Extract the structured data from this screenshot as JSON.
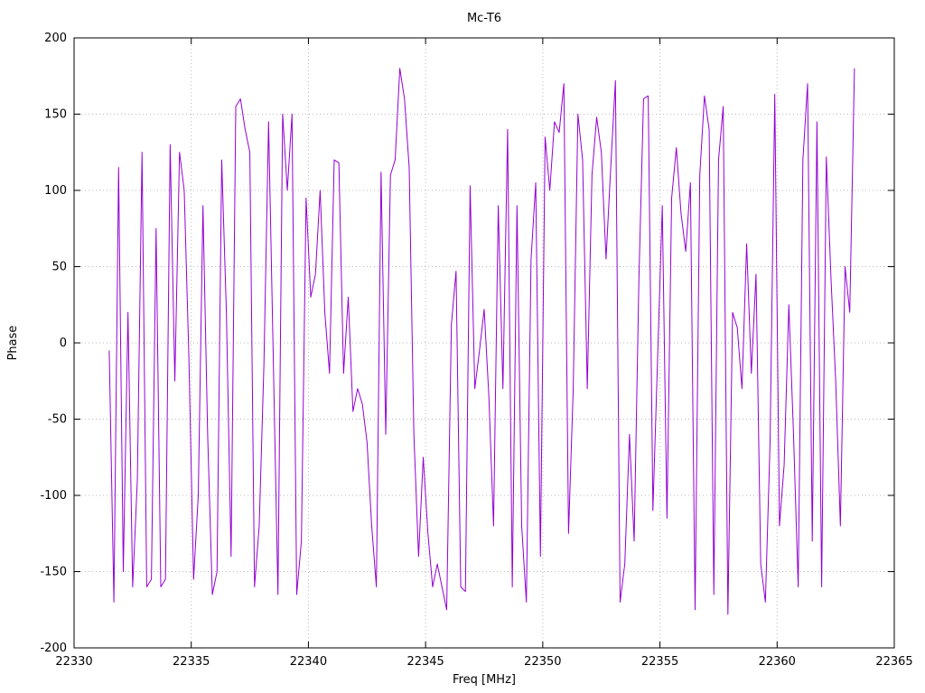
{
  "chart": {
    "title": "Mc-T6",
    "xlabel": "Freq [MHz]",
    "ylabel": "Phase"
  },
  "chart_data": {
    "type": "line",
    "title": "Mc-T6",
    "xlabel": "Freq [MHz]",
    "ylabel": "Phase",
    "xlim": [
      22330,
      22365
    ],
    "ylim": [
      -200,
      200
    ],
    "x_ticks": [
      22330,
      22335,
      22340,
      22345,
      22350,
      22355,
      22360,
      22365
    ],
    "y_ticks": [
      -200,
      -150,
      -100,
      -50,
      0,
      50,
      100,
      150,
      200
    ],
    "grid": true,
    "legend": "none",
    "line_color": "#9400d3",
    "series": [
      {
        "name": "Phase",
        "x_start": 22331.5,
        "x_step": 0.2,
        "values": [
          -5,
          -170,
          115,
          -150,
          20,
          -160,
          -90,
          125,
          -160,
          -155,
          75,
          -160,
          -155,
          130,
          -25,
          125,
          100,
          -10,
          -155,
          -100,
          90,
          -60,
          -165,
          -150,
          120,
          20,
          -140,
          155,
          160,
          140,
          125,
          -160,
          -120,
          -15,
          145,
          -10,
          -165,
          150,
          100,
          150,
          -165,
          -130,
          95,
          30,
          45,
          100,
          20,
          -20,
          120,
          118,
          -20,
          30,
          -45,
          -30,
          -40,
          -65,
          -120,
          -160,
          112,
          -60,
          110,
          120,
          180,
          160,
          115,
          -60,
          -140,
          -75,
          -125,
          -160,
          -145,
          -160,
          -175,
          12,
          47,
          -160,
          -163,
          103,
          -30,
          -5,
          22,
          -35,
          -120,
          90,
          -30,
          140,
          -160,
          90,
          -120,
          -170,
          55,
          105,
          -140,
          135,
          100,
          145,
          138,
          170,
          -125,
          -30,
          150,
          120,
          -30,
          110,
          148,
          125,
          55,
          115,
          172,
          -170,
          -145,
          -60,
          -130,
          40,
          160,
          162,
          -110,
          -10,
          90,
          -115,
          95,
          128,
          85,
          60,
          105,
          -175,
          110,
          162,
          140,
          -165,
          120,
          155,
          -178,
          20,
          10,
          -30,
          65,
          -20,
          45,
          -145,
          -170,
          -65,
          163,
          -120,
          -80,
          25,
          -60,
          -160,
          120,
          170,
          -130,
          145,
          -160,
          122,
          42,
          -25,
          -120,
          50,
          20,
          180
        ]
      }
    ]
  }
}
